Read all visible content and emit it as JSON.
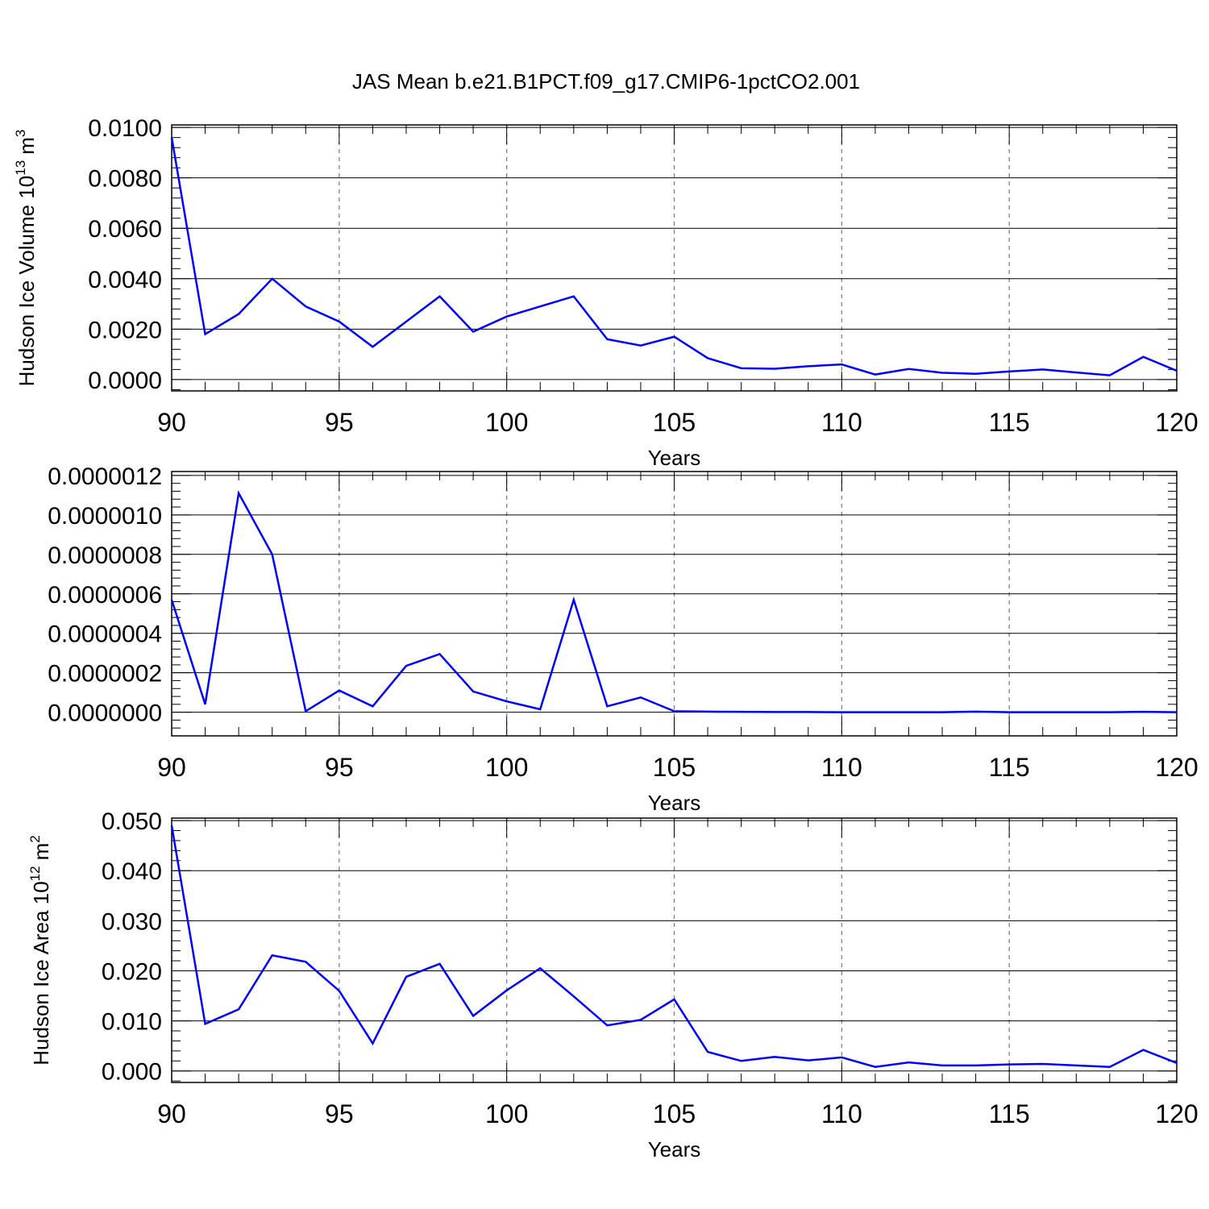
{
  "figure": {
    "title": "JAS Mean b.e21.B1PCT.f09_g17.CMIP6-1pctCO2.001",
    "line_color": "#0000ff"
  },
  "chart_data": [
    {
      "type": "line",
      "title": "",
      "xlabel": "Years",
      "ylabel": "Hudson Ice Volume 10",
      "ylabel_exponent": "13",
      "ylabel_unit": "m",
      "ylabel_unit_exponent": "3",
      "xlim": [
        90,
        120
      ],
      "ylim": [
        -0.00045,
        0.0101
      ],
      "grid": "vertical dashed at major x ticks",
      "x_ticks": [
        90,
        95,
        100,
        105,
        110,
        115,
        120
      ],
      "x_tick_labels": [
        "90",
        "95",
        "100",
        "105",
        "110",
        "115",
        "120"
      ],
      "y_ticks": [
        0,
        0.002,
        0.004,
        0.006,
        0.008,
        0.01
      ],
      "y_tick_labels": [
        "0.0000",
        "0.0020",
        "0.0040",
        "0.0060",
        "0.0080",
        "0.0100"
      ],
      "x": [
        90,
        91,
        92,
        93,
        94,
        95,
        96,
        97,
        98,
        99,
        100,
        101,
        102,
        103,
        104,
        105,
        106,
        107,
        108,
        109,
        110,
        111,
        112,
        113,
        114,
        115,
        116,
        117,
        118,
        119,
        120
      ],
      "series": [
        {
          "values": [
            0.0096,
            0.0018,
            0.0026,
            0.004,
            0.0029,
            0.0023,
            0.0013,
            0.0023,
            0.0033,
            0.0019,
            0.0025,
            0.0029,
            0.0033,
            0.0016,
            0.00135,
            0.0017,
            0.00085,
            0.00045,
            0.00043,
            0.00053,
            0.0006,
            0.0002,
            0.00042,
            0.00027,
            0.00023,
            0.00032,
            0.0004,
            0.00028,
            0.00017,
            0.0009,
            0.00035
          ]
        }
      ]
    },
    {
      "type": "line",
      "title": "",
      "xlabel": "Years",
      "ylabel": "",
      "xlim": [
        90,
        120
      ],
      "ylim": [
        -1.2e-07,
        1.22e-06
      ],
      "grid": "vertical dashed at major x ticks",
      "x_ticks": [
        90,
        95,
        100,
        105,
        110,
        115,
        120
      ],
      "x_tick_labels": [
        "90",
        "95",
        "100",
        "105",
        "110",
        "115",
        "120"
      ],
      "y_ticks": [
        0,
        2e-07,
        4e-07,
        6e-07,
        8e-07,
        1e-06,
        1.2e-06
      ],
      "y_tick_labels": [
        "0.0000000",
        "0.0000002",
        "0.0000004",
        "0.0000006",
        "0.0000008",
        "0.0000010",
        "0.0000012"
      ],
      "x": [
        90,
        91,
        92,
        93,
        94,
        95,
        96,
        97,
        98,
        99,
        100,
        101,
        102,
        103,
        104,
        105,
        106,
        107,
        108,
        109,
        110,
        111,
        112,
        113,
        114,
        115,
        116,
        117,
        118,
        119,
        120
      ],
      "series": [
        {
          "values": [
            5.7e-07,
            4e-08,
            1.11e-06,
            8e-07,
            5e-09,
            1.1e-07,
            3e-08,
            2.35e-07,
            2.95e-07,
            1.05e-07,
            5.5e-08,
            1.5e-08,
            5.7e-07,
            3e-08,
            7.5e-08,
            5e-09,
            3e-09,
            2e-09,
            1e-09,
            1e-09,
            0.0,
            0.0,
            0.0,
            0.0,
            3e-09,
            0.0,
            0.0,
            0.0,
            0.0,
            2e-09,
            0.0
          ]
        }
      ]
    },
    {
      "type": "line",
      "title": "",
      "xlabel": "Years",
      "ylabel": "Hudson Ice Area 10",
      "ylabel_exponent": "12",
      "ylabel_unit": "m",
      "ylabel_unit_exponent": "2",
      "xlim": [
        90,
        120
      ],
      "ylim": [
        -0.0023,
        0.0505
      ],
      "grid": "vertical dashed at major x ticks",
      "x_ticks": [
        90,
        95,
        100,
        105,
        110,
        115,
        120
      ],
      "x_tick_labels": [
        "90",
        "95",
        "100",
        "105",
        "110",
        "115",
        "120"
      ],
      "y_ticks": [
        0,
        0.01,
        0.02,
        0.03,
        0.04,
        0.05
      ],
      "y_tick_labels": [
        "0.000",
        "0.010",
        "0.020",
        "0.030",
        "0.040",
        "0.050"
      ],
      "x": [
        90,
        91,
        92,
        93,
        94,
        95,
        96,
        97,
        98,
        99,
        100,
        101,
        102,
        103,
        104,
        105,
        106,
        107,
        108,
        109,
        110,
        111,
        112,
        113,
        114,
        115,
        116,
        117,
        118,
        119,
        120
      ],
      "series": [
        {
          "values": [
            0.049,
            0.0094,
            0.0123,
            0.0231,
            0.0218,
            0.016,
            0.0055,
            0.0188,
            0.0214,
            0.011,
            0.0161,
            0.0205,
            0.0149,
            0.0091,
            0.0102,
            0.0143,
            0.0038,
            0.002,
            0.0028,
            0.0021,
            0.0027,
            0.0008,
            0.0017,
            0.0011,
            0.0011,
            0.0013,
            0.0014,
            0.0011,
            0.0008,
            0.0042,
            0.0016
          ]
        }
      ]
    }
  ]
}
